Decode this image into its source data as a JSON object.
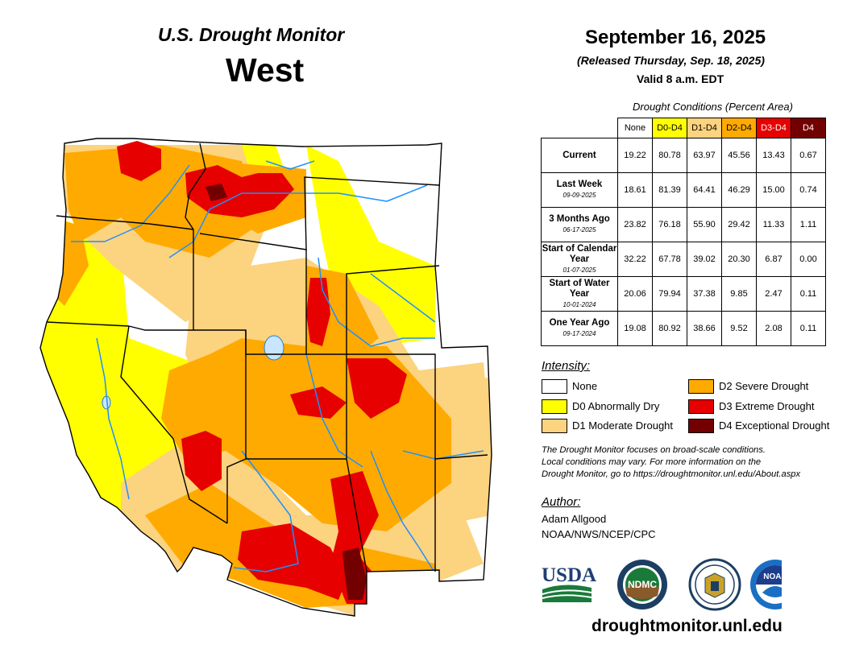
{
  "header": {
    "source": "U.S. Drought Monitor",
    "region": "West"
  },
  "report": {
    "date": "September 16, 2025",
    "released": "(Released Thursday, Sep. 18, 2025)",
    "valid": "Valid 8 a.m. EDT"
  },
  "conditions": {
    "title": "Drought Conditions (Percent Area)",
    "columns": [
      "None",
      "D0-D4",
      "D1-D4",
      "D2-D4",
      "D3-D4",
      "D4"
    ],
    "rows": [
      {
        "label": "Current",
        "date": "",
        "values": [
          "19.22",
          "80.78",
          "63.97",
          "45.56",
          "13.43",
          "0.67"
        ]
      },
      {
        "label": "Last Week",
        "date": "09-09-2025",
        "values": [
          "18.61",
          "81.39",
          "64.41",
          "46.29",
          "15.00",
          "0.74"
        ]
      },
      {
        "label": "3 Months Ago",
        "date": "06-17-2025",
        "values": [
          "23.82",
          "76.18",
          "55.90",
          "29.42",
          "11.33",
          "1.11"
        ]
      },
      {
        "label": "Start of Calendar Year",
        "date": "01-07-2025",
        "values": [
          "32.22",
          "67.78",
          "39.02",
          "20.30",
          "6.87",
          "0.00"
        ]
      },
      {
        "label": "Start of Water Year",
        "date": "10-01-2024",
        "values": [
          "20.06",
          "79.94",
          "37.38",
          "9.85",
          "2.47",
          "0.11"
        ]
      },
      {
        "label": "One Year Ago",
        "date": "09-17-2024",
        "values": [
          "19.08",
          "80.92",
          "38.66",
          "9.52",
          "2.08",
          "0.11"
        ]
      }
    ]
  },
  "intensity": {
    "title": "Intensity:",
    "items": [
      {
        "label": "None",
        "color": "#ffffff"
      },
      {
        "label": "D0 Abnormally Dry",
        "color": "#ffff00"
      },
      {
        "label": "D1 Moderate Drought",
        "color": "#fcd37f"
      },
      {
        "label": "D2 Severe Drought",
        "color": "#ffaa00"
      },
      {
        "label": "D3 Extreme Drought",
        "color": "#e60000"
      },
      {
        "label": "D4 Exceptional Drought",
        "color": "#730000"
      }
    ]
  },
  "disclaimer": [
    "The Drought Monitor focuses on broad-scale conditions.",
    "Local conditions may vary. For more information on the",
    "Drought Monitor, go to https://droughtmonitor.unl.edu/About.aspx"
  ],
  "author": {
    "title": "Author:",
    "name": "Adam Allgood",
    "org": "NOAA/NWS/NCEP/CPC"
  },
  "logos": {
    "usda": "USDA",
    "ndmc": "NDMC",
    "noaa": "NOAA"
  },
  "website": "droughtmonitor.unl.edu"
}
